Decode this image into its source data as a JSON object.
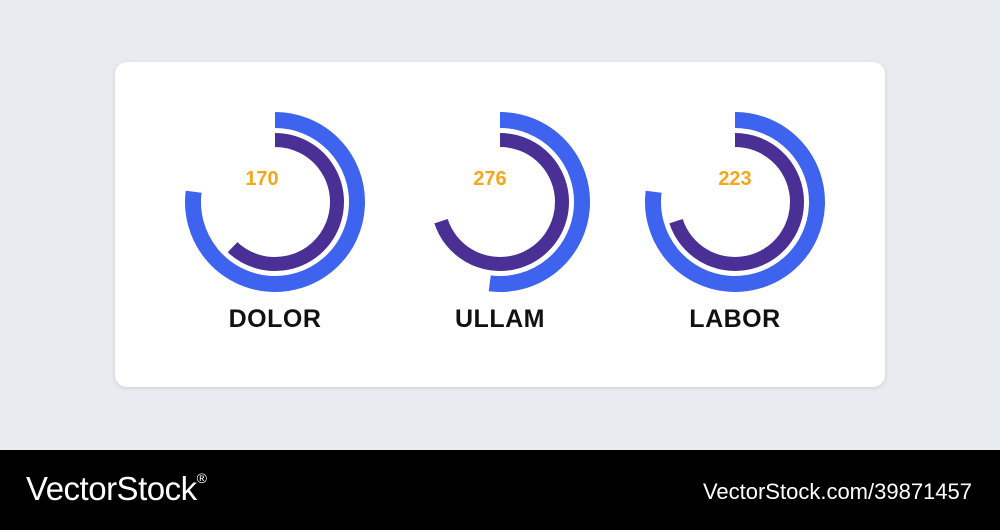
{
  "colors": {
    "outer_ring": "#3d63ef",
    "inner_ring": "#4a2f95",
    "value_text": "#f3a81b",
    "label_text": "#111111",
    "background": "#e8ebef",
    "card": "#ffffff"
  },
  "chart_data": {
    "type": "radial-bar",
    "gauges": [
      {
        "label": "DOLOR",
        "value": "170",
        "outer_fraction": 0.77,
        "inner_fraction": 0.62
      },
      {
        "label": "ULLAM",
        "value": "276",
        "outer_fraction": 0.52,
        "inner_fraction": 0.7
      },
      {
        "label": "LABOR",
        "value": "223",
        "outer_fraction": 0.77,
        "inner_fraction": 0.7
      }
    ]
  },
  "watermark": {
    "brand": "VectorStock",
    "brand_mark": "®",
    "stock_id": "VectorStock.com/39871457"
  }
}
